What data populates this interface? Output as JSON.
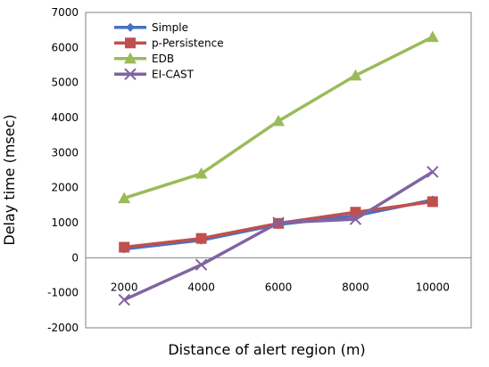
{
  "chart_data": {
    "type": "line",
    "xlabel": "Distance of alert region (m)",
    "ylabel": "Delay time (msec)",
    "x": [
      2000,
      4000,
      6000,
      8000,
      10000
    ],
    "ylim": [
      -2000,
      7000
    ],
    "y_ticks": [
      -2000,
      -1000,
      0,
      1000,
      2000,
      3000,
      4000,
      5000,
      6000,
      7000
    ],
    "legend_position": "top-left",
    "grid": false,
    "series": [
      {
        "name": "Simple",
        "color": "#4472C4",
        "marker": "diamond",
        "values": [
          250,
          500,
          950,
          1200,
          1650
        ]
      },
      {
        "name": "p-Persistence",
        "color": "#C0504D",
        "marker": "square",
        "values": [
          300,
          550,
          980,
          1300,
          1600
        ]
      },
      {
        "name": "EDB",
        "color": "#9BBB59",
        "marker": "triangle",
        "values": [
          1700,
          2400,
          3900,
          5200,
          6300
        ]
      },
      {
        "name": "EI-CAST",
        "color": "#8064A2",
        "marker": "x",
        "values": [
          -1200,
          -200,
          1000,
          1100,
          2450
        ]
      }
    ]
  }
}
